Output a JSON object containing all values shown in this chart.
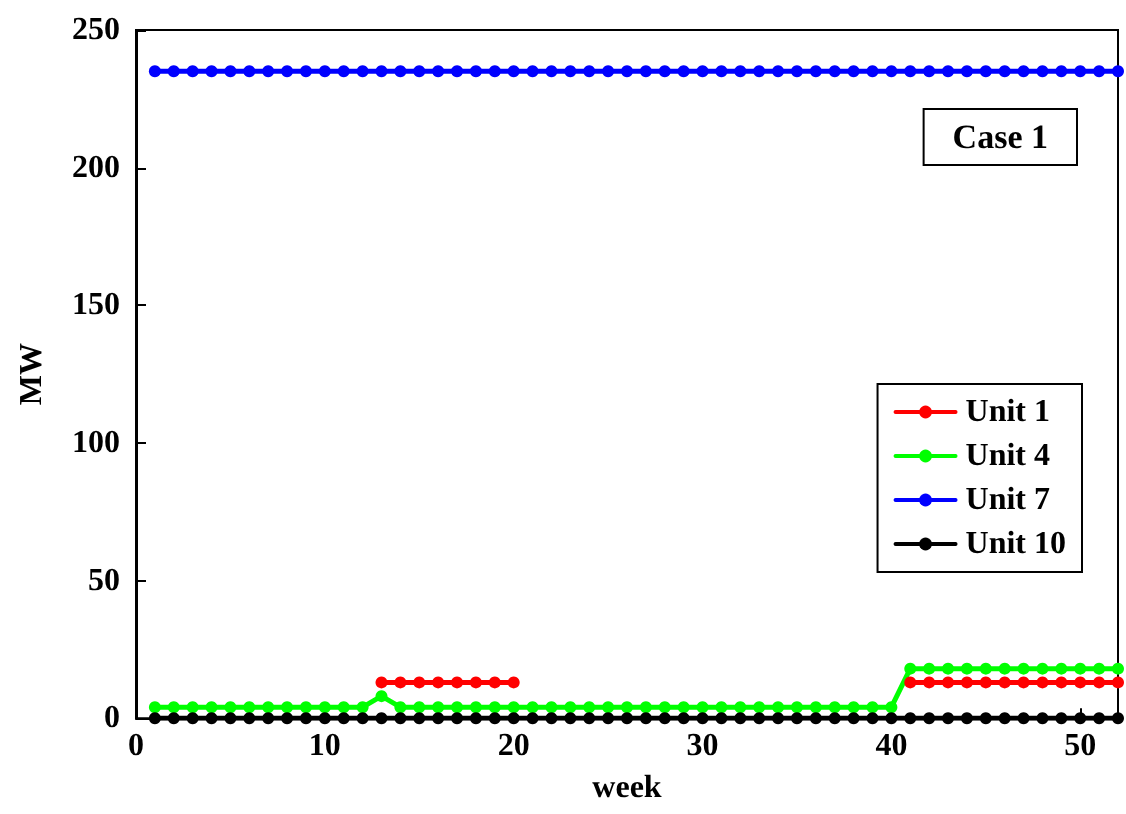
{
  "chart_data": {
    "type": "line",
    "xlabel": "week",
    "ylabel": "MW",
    "x": [
      1,
      2,
      3,
      4,
      5,
      6,
      7,
      8,
      9,
      10,
      11,
      12,
      13,
      14,
      15,
      16,
      17,
      18,
      19,
      20,
      21,
      22,
      23,
      24,
      25,
      26,
      27,
      28,
      29,
      30,
      31,
      32,
      33,
      34,
      35,
      36,
      37,
      38,
      39,
      40,
      41,
      42,
      43,
      44,
      45,
      46,
      47,
      48,
      49,
      50,
      51,
      52
    ],
    "series": [
      {
        "name": "Unit 1",
        "color": "#ff0000",
        "values": [
          null,
          null,
          null,
          null,
          null,
          null,
          null,
          null,
          null,
          null,
          null,
          null,
          13,
          13,
          13,
          13,
          13,
          13,
          13,
          13,
          null,
          null,
          null,
          null,
          null,
          null,
          null,
          null,
          null,
          null,
          null,
          null,
          null,
          null,
          null,
          null,
          null,
          null,
          null,
          null,
          13,
          13,
          13,
          13,
          13,
          13,
          13,
          13,
          13,
          13,
          13,
          13
        ]
      },
      {
        "name": "Unit 4",
        "color": "#00ff00",
        "values": [
          4,
          4,
          4,
          4,
          4,
          4,
          4,
          4,
          4,
          4,
          4,
          4,
          8,
          4,
          4,
          4,
          4,
          4,
          4,
          4,
          4,
          4,
          4,
          4,
          4,
          4,
          4,
          4,
          4,
          4,
          4,
          4,
          4,
          4,
          4,
          4,
          4,
          4,
          4,
          4,
          18,
          18,
          18,
          18,
          18,
          18,
          18,
          18,
          18,
          18,
          18,
          18
        ]
      },
      {
        "name": "Unit 7",
        "color": "#0000ff",
        "values": [
          235,
          235,
          235,
          235,
          235,
          235,
          235,
          235,
          235,
          235,
          235,
          235,
          235,
          235,
          235,
          235,
          235,
          235,
          235,
          235,
          235,
          235,
          235,
          235,
          235,
          235,
          235,
          235,
          235,
          235,
          235,
          235,
          235,
          235,
          235,
          235,
          235,
          235,
          235,
          235,
          235,
          235,
          235,
          235,
          235,
          235,
          235,
          235,
          235,
          235,
          235,
          235
        ]
      },
      {
        "name": "Unit 10",
        "color": "#000000",
        "values": [
          0,
          0,
          0,
          0,
          0,
          0,
          0,
          0,
          0,
          0,
          0,
          0,
          0,
          0,
          0,
          0,
          0,
          0,
          0,
          0,
          0,
          0,
          0,
          0,
          0,
          0,
          0,
          0,
          0,
          0,
          0,
          0,
          0,
          0,
          0,
          0,
          0,
          0,
          0,
          0,
          0,
          0,
          0,
          0,
          0,
          0,
          0,
          0,
          0,
          0,
          0,
          0
        ]
      }
    ],
    "xlim": [
      0,
      52
    ],
    "xticks": [
      0,
      10,
      20,
      30,
      40,
      50
    ],
    "ylim": [
      0,
      250
    ],
    "yticks": [
      0,
      50,
      100,
      150,
      200,
      250
    ],
    "annotations": [
      "Case 1"
    ],
    "legend": "right",
    "marker": "circle",
    "line_style": "solid",
    "grid": false
  }
}
